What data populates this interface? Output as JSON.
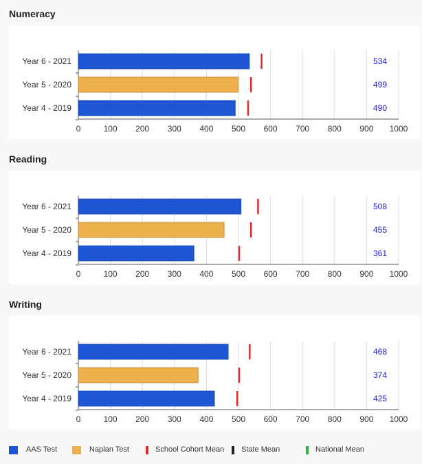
{
  "chart_data": [
    {
      "type": "bar",
      "title": "Numeracy",
      "categories": [
        "Year 6 - 2021",
        "Year 5 - 2020",
        "Year 4 - 2019"
      ],
      "series": [
        {
          "name": "AAS Test / Naplan Test",
          "values": [
            534,
            499,
            490
          ],
          "test_types": [
            "AAS Test",
            "Naplan Test",
            "AAS Test"
          ]
        },
        {
          "name": "School Cohort Mean",
          "values": [
            572,
            539,
            530
          ]
        }
      ],
      "value_labels": [
        "534",
        "499",
        "490"
      ],
      "xlim": [
        0,
        1000
      ],
      "xticks": [
        "0",
        "100",
        "200",
        "300",
        "400",
        "500",
        "600",
        "700",
        "800",
        "900",
        "1000"
      ],
      "grid": true
    },
    {
      "type": "bar",
      "title": "Reading",
      "categories": [
        "Year 6 - 2021",
        "Year 5 - 2020",
        "Year 4 - 2019"
      ],
      "series": [
        {
          "name": "AAS Test / Naplan Test",
          "values": [
            508,
            455,
            361
          ],
          "test_types": [
            "AAS Test",
            "Naplan Test",
            "AAS Test"
          ]
        },
        {
          "name": "School Cohort Mean",
          "values": [
            561,
            539,
            502
          ]
        }
      ],
      "value_labels": [
        "508",
        "455",
        "361"
      ],
      "xlim": [
        0,
        1000
      ],
      "xticks": [
        "0",
        "100",
        "200",
        "300",
        "400",
        "500",
        "600",
        "700",
        "800",
        "900",
        "1000"
      ],
      "grid": true
    },
    {
      "type": "bar",
      "title": "Writing",
      "categories": [
        "Year 6 - 2021",
        "Year 5 - 2020",
        "Year 4 - 2019"
      ],
      "series": [
        {
          "name": "AAS Test / Naplan Test",
          "values": [
            468,
            374,
            425
          ],
          "test_types": [
            "AAS Test",
            "Naplan Test",
            "AAS Test"
          ]
        },
        {
          "name": "School Cohort Mean",
          "values": [
            535,
            502,
            496
          ]
        }
      ],
      "value_labels": [
        "468",
        "374",
        "425"
      ],
      "xlim": [
        0,
        1000
      ],
      "xticks": [
        "0",
        "100",
        "200",
        "300",
        "400",
        "500",
        "600",
        "700",
        "800",
        "900",
        "1000"
      ],
      "grid": true
    }
  ],
  "legend": [
    {
      "label": "AAS Test",
      "color": "#1f56d4",
      "kind": "square"
    },
    {
      "label": "Naplan Test",
      "color": "#eeb04c",
      "kind": "square"
    },
    {
      "label": "School Cohort Mean",
      "color": "#e22a2a",
      "kind": "tick"
    },
    {
      "label": "State Mean",
      "color": "#222222",
      "kind": "tick"
    },
    {
      "label": "National Mean",
      "color": "#2bb24c",
      "kind": "tick"
    }
  ],
  "colors": {
    "AAS Test": "#1f56d4",
    "Naplan Test": "#eeb04c",
    "School Cohort Mean": "#e22a2a",
    "value_label": "#1a1ae6",
    "grid": "#dddddd",
    "axis": "#555555"
  }
}
